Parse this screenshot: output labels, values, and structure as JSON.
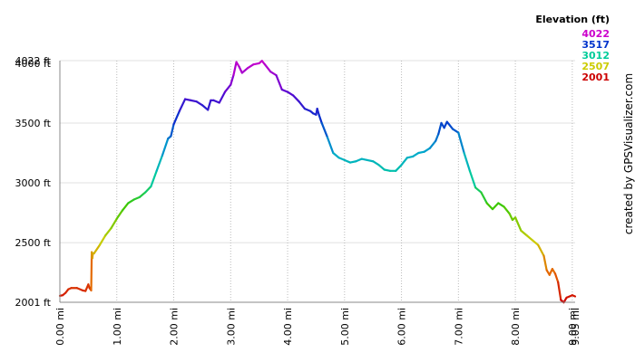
{
  "chart_data": {
    "type": "line",
    "x_unit": "mi",
    "y_unit": "ft",
    "xlim": [
      0,
      9.05
    ],
    "ylim": [
      2001,
      4022
    ],
    "x_ticks": [
      0,
      1,
      2,
      3,
      4,
      5,
      6,
      7,
      8,
      9
    ],
    "x_tick_labels": [
      "0.00 mi",
      "1.00 mi",
      "2.00 mi",
      "3.00 mi",
      "4.00 mi",
      "5.00 mi",
      "6.00 mi",
      "7.00 mi",
      "8.00 mi",
      "9.00 mi"
    ],
    "x_end_label": "9.05 mi",
    "y_ticks": [
      2001,
      2500,
      3000,
      3500,
      4022
    ],
    "y_tick_labels": [
      "2001 ft",
      "2500 ft",
      "3000 ft",
      "3500 ft",
      "4022 ft"
    ],
    "y_extra_label": "4000 ft",
    "y_extra_value": 4000,
    "grid": true,
    "legend": {
      "title": "Elevation (ft)",
      "placement": "top-right",
      "entries": [
        {
          "label": "4022",
          "color": "#cc00cc"
        },
        {
          "label": "3517",
          "color": "#0033cc"
        },
        {
          "label": "3012",
          "color": "#00cc99"
        },
        {
          "label": "2507",
          "color": "#cccc00"
        },
        {
          "label": "2001",
          "color": "#cc0000"
        }
      ]
    },
    "credit": "created by GPSVisualizer.com",
    "color_scale": "elevation-rainbow",
    "series": [
      {
        "x": [
          0.0,
          0.05,
          0.1,
          0.15,
          0.2,
          0.3,
          0.4,
          0.45,
          0.5,
          0.52,
          0.55,
          0.56,
          0.57,
          0.58,
          0.6,
          0.7,
          0.8,
          0.9,
          1.0,
          1.1,
          1.2,
          1.3,
          1.4,
          1.5,
          1.6,
          1.7,
          1.8,
          1.9,
          1.95,
          2.0,
          2.1,
          2.2,
          2.3,
          2.4,
          2.5,
          2.6,
          2.65,
          2.7,
          2.8,
          2.9,
          3.0,
          3.05,
          3.1,
          3.15,
          3.2,
          3.3,
          3.4,
          3.5,
          3.55,
          3.6,
          3.7,
          3.8,
          3.9,
          4.0,
          4.1,
          4.2,
          4.3,
          4.4,
          4.45,
          4.5,
          4.52,
          4.55,
          4.6,
          4.7,
          4.8,
          4.9,
          5.0,
          5.1,
          5.2,
          5.3,
          5.4,
          5.5,
          5.6,
          5.7,
          5.8,
          5.9,
          6.0,
          6.1,
          6.2,
          6.3,
          6.4,
          6.5,
          6.6,
          6.65,
          6.7,
          6.75,
          6.8,
          6.85,
          6.9,
          7.0,
          7.1,
          7.2,
          7.3,
          7.4,
          7.5,
          7.6,
          7.7,
          7.8,
          7.9,
          7.95,
          8.0,
          8.1,
          8.2,
          8.3,
          8.4,
          8.5,
          8.55,
          8.6,
          8.65,
          8.7,
          8.75,
          8.8,
          8.85,
          8.9,
          9.0,
          9.05
        ],
        "y": [
          2055,
          2060,
          2080,
          2110,
          2120,
          2120,
          2100,
          2095,
          2150,
          2120,
          2100,
          2420,
          2370,
          2410,
          2410,
          2480,
          2560,
          2620,
          2700,
          2770,
          2830,
          2860,
          2880,
          2920,
          2970,
          3100,
          3230,
          3370,
          3390,
          3490,
          3600,
          3700,
          3690,
          3680,
          3650,
          3610,
          3690,
          3690,
          3670,
          3760,
          3820,
          3900,
          4010,
          3970,
          3920,
          3960,
          3990,
          4000,
          4020,
          3990,
          3930,
          3900,
          3780,
          3760,
          3730,
          3680,
          3620,
          3600,
          3580,
          3570,
          3620,
          3570,
          3500,
          3380,
          3250,
          3210,
          3190,
          3170,
          3180,
          3200,
          3190,
          3180,
          3150,
          3110,
          3100,
          3100,
          3150,
          3210,
          3220,
          3250,
          3260,
          3290,
          3350,
          3410,
          3500,
          3460,
          3510,
          3480,
          3450,
          3420,
          3250,
          3100,
          2960,
          2920,
          2830,
          2780,
          2830,
          2800,
          2740,
          2690,
          2710,
          2600,
          2560,
          2520,
          2480,
          2390,
          2270,
          2230,
          2280,
          2240,
          2170,
          2020,
          2000,
          2040,
          2060,
          2050
        ]
      }
    ]
  }
}
